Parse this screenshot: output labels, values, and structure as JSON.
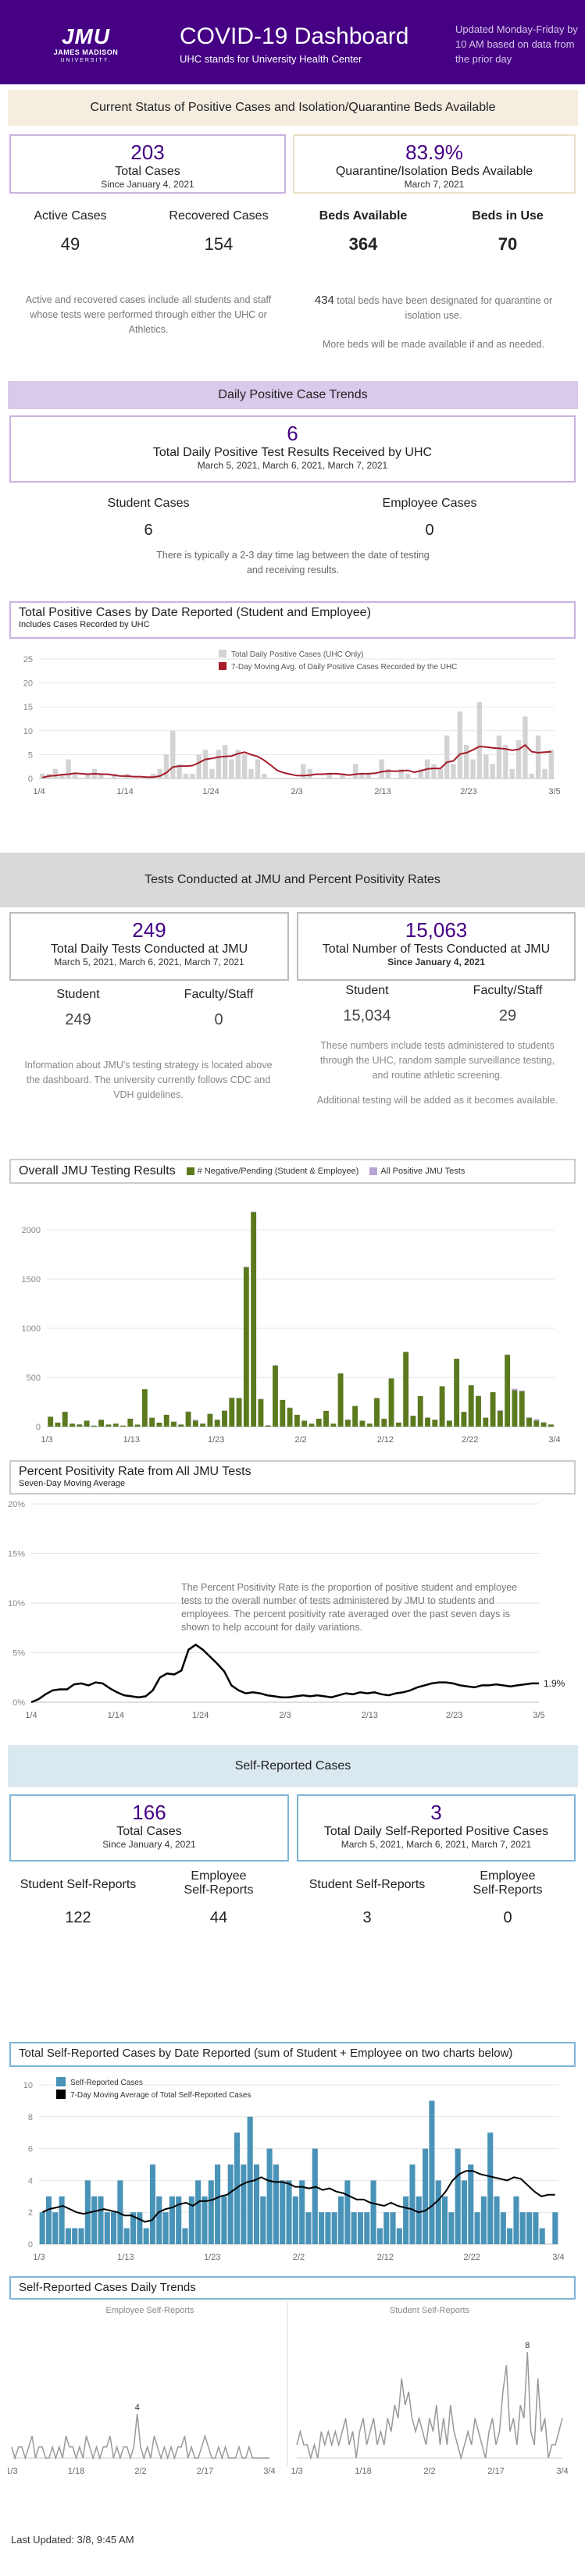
{
  "header": {
    "logo_text": "JMU",
    "logo_line2": "JAMES MADISON",
    "logo_line3": "UNIVERSITY.",
    "title": "COVID-19 Dashboard",
    "subtitle": "UHC stands for University Health Center",
    "update_note": "Updated Monday-Friday by 10 AM based on data from the prior day",
    "bg_color": "#450084"
  },
  "status": {
    "band": "Current Status of Positive Cases and Isolation/Quarantine Beds Available",
    "total_cases": "203",
    "total_cases_label": "Total Cases",
    "total_cases_since": "Since January 4, 2021",
    "beds_pct": "83.9%",
    "beds_label": "Quarantine/Isolation Beds Available",
    "beds_date": "March 7, 2021",
    "active_label": "Active Cases",
    "active_value": "49",
    "recovered_label": "Recovered Cases",
    "recovered_value": "154",
    "beds_avail_label": "Beds Available",
    "beds_avail_value": "364",
    "beds_use_label": "Beds in Use",
    "beds_use_value": "70",
    "note_left": "Active and recovered cases include all students and staff whose tests were performed through either the UHC or Athletics.",
    "note_right_num": "434",
    "note_right_1": " total beds have been designated for quarantine or isolation use.",
    "note_right_2": "More beds will be made available if and as needed."
  },
  "daily": {
    "band": "Daily Positive Case Trends",
    "value": "6",
    "label": "Total Daily Positive Test Results Received by UHC",
    "dates": "March 5, 2021, March 6, 2021, March 7, 2021",
    "student_label": "Student Cases",
    "student_value": "6",
    "employee_label": "Employee Cases",
    "employee_value": "0",
    "note": "There is typically a 2-3 day time lag between the date of testing and receiving results."
  },
  "chart1": {
    "title": "Total Positive Cases by Date Reported (Student and Employee)",
    "subtitle": "Includes Cases Recorded by UHC",
    "legend_bar": "Total Daily Positive Cases (UHC Only)",
    "legend_line": "7-Day Moving Avg. of Daily Positive Cases Recorded by the UHC"
  },
  "tests": {
    "band": "Tests Conducted at JMU and Percent Positivity Rates",
    "daily_value": "249",
    "daily_label": "Total Daily Tests Conducted at JMU",
    "daily_dates": "March 5, 2021, March 6, 2021, March 7, 2021",
    "total_value": "15,063",
    "total_label": "Total Number of Tests Conducted at JMU",
    "total_since": "Since January 4, 2021",
    "student_label": "Student",
    "faculty_label": "Faculty/Staff",
    "daily_student": "249",
    "daily_faculty": "0",
    "total_student": "15,034",
    "total_faculty": "29",
    "note_left": "Information about JMU's testing strategy is located above the dashboard. The university currently follows CDC and VDH guidelines.",
    "note_right_1": "These numbers include tests administered to students through the UHC, random sample surveillance testing, and routine athletic screening.",
    "note_right_2": "Additional testing will be added as it becomes available."
  },
  "chart2": {
    "title": "Overall JMU Testing Results",
    "legend_neg": "# Negative/Pending (Student & Employee)",
    "legend_pos": "All Positive JMU Tests"
  },
  "chart3": {
    "title": "Percent Positivity Rate from All JMU Tests",
    "subtitle": "Seven-Day Moving Average",
    "note": "The Percent Positivity Rate is the proportion of positive student and employee tests to the overall number of tests administered by JMU to students and employees.   The percent positivity rate averaged over the past seven days is shown to help account for daily variations.",
    "end_label": "1.9%"
  },
  "self": {
    "band": "Self-Reported Cases",
    "total_value": "166",
    "total_label": "Total Cases",
    "total_since": "Since January 4, 2021",
    "daily_value": "3",
    "daily_label": "Total Daily Self-Reported Positive Cases",
    "daily_dates": "March 5, 2021, March 6, 2021, March 7, 2021",
    "student_label": "Student Self-Reports",
    "employee_label_1": "Employee",
    "employee_label_2": "Self-Reports",
    "total_student": "122",
    "total_employee": "44",
    "daily_student": "3",
    "daily_employee": "0"
  },
  "chart4": {
    "title": "Total Self-Reported Cases by Date Reported (sum of Student + Employee on two charts below)",
    "legend_bar": "Self-Reported Cases",
    "legend_line": "7-Day Moving Average of Total Self-Reported Cases"
  },
  "chart5": {
    "title": "Self-Reported Cases Daily Trends",
    "left_label": "Employee Self-Reports",
    "right_label": "Student Self-Reports",
    "left_peak": "4",
    "right_peak": "8"
  },
  "footer": {
    "last_updated": "Last Updated: 3/8, 9:45 AM"
  },
  "chart_data": [
    {
      "type": "bar",
      "title": "Total Positive Cases by Date Reported (Student and Employee)",
      "ylim": [
        0,
        25
      ],
      "yticks": [
        0,
        5,
        10,
        15,
        20,
        25
      ],
      "xticks": [
        "1/4",
        "1/14",
        "1/24",
        "2/3",
        "2/13",
        "2/23",
        "3/5"
      ],
      "series": [
        {
          "name": "Total Daily Positive Cases (UHC Only)",
          "values": [
            1,
            1,
            2,
            1,
            4,
            1,
            0,
            1,
            2,
            1,
            0,
            1,
            0,
            1,
            0,
            0,
            0,
            1,
            2,
            5,
            10,
            3,
            1,
            1,
            5,
            6,
            2,
            6,
            7,
            4,
            6,
            5,
            2,
            4,
            1,
            0,
            0,
            0,
            0,
            0,
            3,
            2,
            0,
            0,
            1,
            0,
            1,
            0,
            3,
            1,
            1,
            0,
            4,
            2,
            0,
            2,
            1,
            0,
            2,
            4,
            3,
            2,
            9,
            3,
            14,
            7,
            4,
            16,
            5,
            3,
            9,
            7,
            2,
            8,
            13,
            1,
            9,
            2,
            6
          ]
        },
        {
          "name": "7-Day Moving Avg. of Daily Positive Cases Recorded by the UHC",
          "values": [
            0.2,
            0.5,
            0.6,
            0.8,
            0.9,
            1.1,
            1.0,
            0.9,
            1.0,
            0.9,
            0.9,
            0.7,
            0.5,
            0.5,
            0.4,
            0.4,
            0.3,
            0.3,
            0.5,
            1.2,
            2.4,
            2.6,
            2.6,
            2.7,
            3.3,
            4.0,
            4.2,
            4.5,
            4.6,
            4.7,
            5.2,
            5.5,
            5.0,
            4.6,
            3.8,
            2.8,
            1.7,
            1.2,
            0.9,
            0.6,
            0.6,
            0.7,
            0.9,
            0.9,
            1.0,
            1.0,
            0.9,
            0.7,
            0.9,
            1.0,
            1.0,
            1.1,
            1.4,
            1.6,
            1.5,
            1.6,
            1.7,
            1.3,
            1.6,
            2.0,
            2.1,
            2.1,
            3.4,
            3.7,
            5.1,
            5.4,
            6.0,
            6.7,
            6.6,
            6.4,
            6.3,
            6.2,
            5.9,
            6.1,
            7.0,
            5.6,
            5.4,
            5.5,
            5.6
          ]
        }
      ]
    },
    {
      "type": "bar",
      "title": "Overall JMU Testing Results",
      "ylim": [
        0,
        2200
      ],
      "yticks": [
        0,
        500,
        1000,
        1500,
        2000
      ],
      "xticks": [
        "1/3",
        "1/13",
        "1/23",
        "2/2",
        "2/12",
        "2/22",
        "3/4"
      ],
      "series": [
        {
          "name": "# Negative/Pending (Student & Employee)",
          "values": [
            100,
            40,
            150,
            30,
            20,
            60,
            10,
            70,
            20,
            30,
            10,
            80,
            20,
            380,
            90,
            40,
            120,
            50,
            20,
            150,
            60,
            30,
            130,
            70,
            160,
            290,
            290,
            1620,
            2180,
            280,
            10,
            620,
            270,
            190,
            120,
            60,
            30,
            80,
            160,
            30,
            540,
            70,
            210,
            60,
            30,
            290,
            80,
            490,
            40,
            760,
            110,
            310,
            90,
            70,
            410,
            60,
            690,
            150,
            420,
            310,
            90,
            350,
            160,
            730,
            370,
            360,
            90,
            60,
            40,
            20
          ]
        },
        {
          "name": "All Positive JMU Tests",
          "values": [
            1,
            1,
            2,
            1,
            4,
            1,
            0,
            1,
            2,
            1,
            0,
            1,
            0,
            1,
            0,
            0,
            0,
            1,
            2,
            5,
            10,
            3,
            1,
            1,
            5,
            6,
            2,
            6,
            7,
            4,
            6,
            5,
            2,
            4,
            1,
            0,
            0,
            0,
            0,
            0,
            3,
            2,
            0,
            0,
            1,
            0,
            1,
            0,
            3,
            1,
            1,
            0,
            4,
            2,
            0,
            2,
            1,
            0,
            2,
            4,
            3,
            2,
            9,
            3,
            14,
            7,
            4,
            16,
            5,
            3
          ]
        }
      ]
    },
    {
      "type": "line",
      "title": "Percent Positivity Rate from All JMU Tests",
      "ylim": [
        0,
        20
      ],
      "yticks": [
        "0%",
        "5%",
        "10%",
        "15%",
        "20%"
      ],
      "xticks": [
        "1/4",
        "1/14",
        "1/24",
        "2/3",
        "2/13",
        "2/23",
        "3/5"
      ],
      "series": [
        {
          "name": "Seven-Day Moving Average",
          "values": [
            0.0,
            0.3,
            0.8,
            1.2,
            1.3,
            1.3,
            1.8,
            1.9,
            1.7,
            2.0,
            1.9,
            1.4,
            1.0,
            0.7,
            0.6,
            0.5,
            0.6,
            1.2,
            2.5,
            2.9,
            2.8,
            3.2,
            5.3,
            5.8,
            5.3,
            4.6,
            3.9,
            3.1,
            1.7,
            1.2,
            0.9,
            1.0,
            0.9,
            0.7,
            0.6,
            0.5,
            0.5,
            0.6,
            0.7,
            0.6,
            0.7,
            0.6,
            0.5,
            0.7,
            0.9,
            0.8,
            1.0,
            0.9,
            1.0,
            0.8,
            0.7,
            0.9,
            1.0,
            1.2,
            1.5,
            1.7,
            1.9,
            2.0,
            2.0,
            1.9,
            1.7,
            1.6,
            1.5,
            1.7,
            1.7,
            1.8,
            1.7,
            1.6,
            1.7,
            1.8,
            1.9,
            1.9
          ]
        }
      ]
    },
    {
      "type": "bar",
      "title": "Total Self-Reported Cases by Date Reported (sum of Student + Employee on two charts below)",
      "ylim": [
        0,
        10
      ],
      "yticks": [
        0,
        2,
        4,
        6,
        8,
        10
      ],
      "xticks": [
        "1/3",
        "1/13",
        "1/23",
        "2/2",
        "2/12",
        "2/22",
        "3/4"
      ],
      "series": [
        {
          "name": "Self-Reported Cases",
          "values": [
            2,
            3,
            2,
            3,
            1,
            1,
            1,
            4,
            3,
            3,
            2,
            2,
            4,
            1,
            2,
            2,
            1,
            5,
            3,
            2,
            3,
            3,
            1,
            3,
            4,
            3,
            4,
            5,
            3,
            5,
            7,
            5,
            8,
            5,
            3,
            6,
            5,
            4,
            4,
            3,
            4,
            2,
            6,
            2,
            2,
            2,
            3,
            4,
            2,
            2,
            2,
            4,
            1,
            2,
            2,
            1,
            3,
            5,
            3,
            6,
            9,
            4,
            3,
            2,
            6,
            4,
            5,
            2,
            3,
            7,
            3,
            2,
            1,
            3,
            2,
            2,
            2,
            1,
            0,
            2
          ]
        },
        {
          "name": "7-Day Moving Average of Total Self-Reported Cases",
          "values": [
            2.0,
            2.2,
            2.3,
            2.4,
            2.2,
            2.0,
            1.9,
            2.0,
            2.1,
            2.2,
            2.1,
            2.0,
            1.8,
            1.8,
            1.6,
            1.4,
            1.5,
            2.0,
            2.2,
            2.3,
            2.5,
            2.6,
            2.4,
            2.7,
            2.7,
            2.8,
            3.0,
            3.1,
            3.4,
            3.7,
            3.9,
            4.0,
            4.2,
            4.0,
            3.9,
            3.9,
            3.8,
            3.6,
            3.6,
            3.5,
            3.6,
            3.4,
            3.5,
            3.3,
            3.2,
            3.0,
            2.8,
            2.8,
            2.6,
            2.5,
            2.4,
            2.6,
            2.4,
            2.3,
            2.2,
            2.0,
            2.1,
            2.4,
            2.8,
            3.3,
            4.0,
            4.4,
            4.6,
            4.6,
            4.4,
            4.3,
            4.2,
            4.1,
            4.0,
            4.2,
            4.1,
            3.7,
            3.3,
            3.0,
            3.1,
            3.1
          ]
        }
      ]
    },
    {
      "type": "line",
      "title": "Self-Reported Cases Daily Trends",
      "xticks_left": [
        "1/3",
        "1/18",
        "2/2",
        "2/17",
        "3/4"
      ],
      "xticks_right": [
        "1/3",
        "1/18",
        "2/2",
        "2/17",
        "3/4"
      ],
      "series": [
        {
          "name": "Employee Self-Reports",
          "values": [
            1,
            0,
            1,
            1,
            0,
            1,
            2,
            0,
            1,
            1,
            0,
            0,
            1,
            0,
            1,
            0,
            2,
            1,
            1,
            0,
            1,
            0,
            2,
            1,
            0,
            1,
            0,
            1,
            1,
            2,
            0,
            1,
            0,
            1,
            1,
            0,
            1,
            4,
            1,
            0,
            1,
            0,
            2,
            1,
            0,
            1,
            0,
            1,
            0,
            1,
            1,
            2,
            0,
            1,
            0,
            0,
            1,
            2,
            1,
            0,
            0,
            1,
            0,
            1,
            0,
            0,
            0,
            1,
            0,
            0,
            1,
            0,
            0,
            0,
            0,
            0,
            0
          ]
        },
        {
          "name": "Student Self-Reports",
          "values": [
            1,
            2,
            1,
            1,
            0,
            1,
            0,
            2,
            1,
            2,
            1,
            2,
            1,
            2,
            3,
            1,
            2,
            0,
            2,
            3,
            1,
            2,
            3,
            1,
            2,
            1,
            3,
            2,
            4,
            3,
            6,
            4,
            5,
            3,
            2,
            3,
            2,
            1,
            3,
            2,
            4,
            1,
            3,
            1,
            4,
            2,
            1,
            0,
            1,
            2,
            1,
            3,
            2,
            1,
            0,
            2,
            3,
            1,
            2,
            5,
            7,
            2,
            3,
            1,
            4,
            3,
            8,
            2,
            1,
            6,
            2,
            3,
            0,
            1,
            1,
            2,
            3
          ]
        }
      ]
    }
  ]
}
